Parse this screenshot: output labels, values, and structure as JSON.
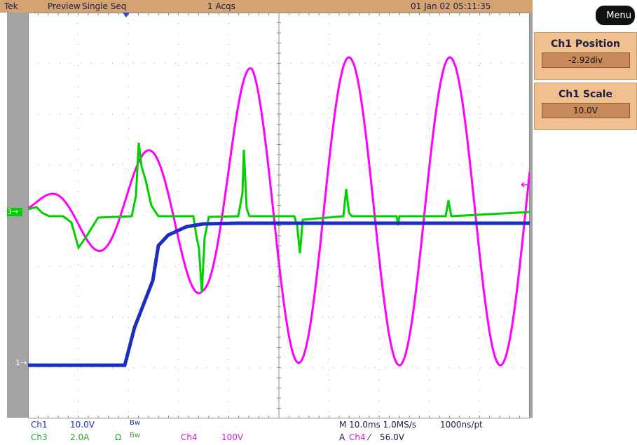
{
  "header": {
    "brand": "Tek",
    "mode": "Preview",
    "seq": "Single Seq",
    "acqs": "1 Acqs",
    "datetime": "01 Jan 02 05:11:35"
  },
  "menu_label": "Menu",
  "ch1_position": {
    "title": "Ch1 Position",
    "value": "-2.92div"
  },
  "ch1_scale": {
    "title": "Ch1 Scale",
    "value": "10.0V"
  },
  "markers": {
    "ch3": "3",
    "ch1": "1"
  },
  "footer": {
    "ch1_name": "Ch1",
    "ch1_scale": "10.0V",
    "ch1_bw": "Bw",
    "ch3_name": "Ch3",
    "ch3_scale": "2.0A",
    "ch3_ohm": "Ω",
    "ch3_bw": "Bw",
    "ch4_name": "Ch4",
    "ch4_scale": "100V",
    "timebase": "M 10.0ms 1.0MS/s",
    "ns_per_pt": "1000ns/pt",
    "trig_a": "A",
    "trig_ch": "Ch4",
    "trig_slope": "⁄",
    "trig_level": "56.0V"
  },
  "colors": {
    "ch1": "#1a2fbf",
    "ch3": "#00d000",
    "ch4": "#ff00ff",
    "background": "#a3a3a3",
    "header": "#d4a373"
  }
}
